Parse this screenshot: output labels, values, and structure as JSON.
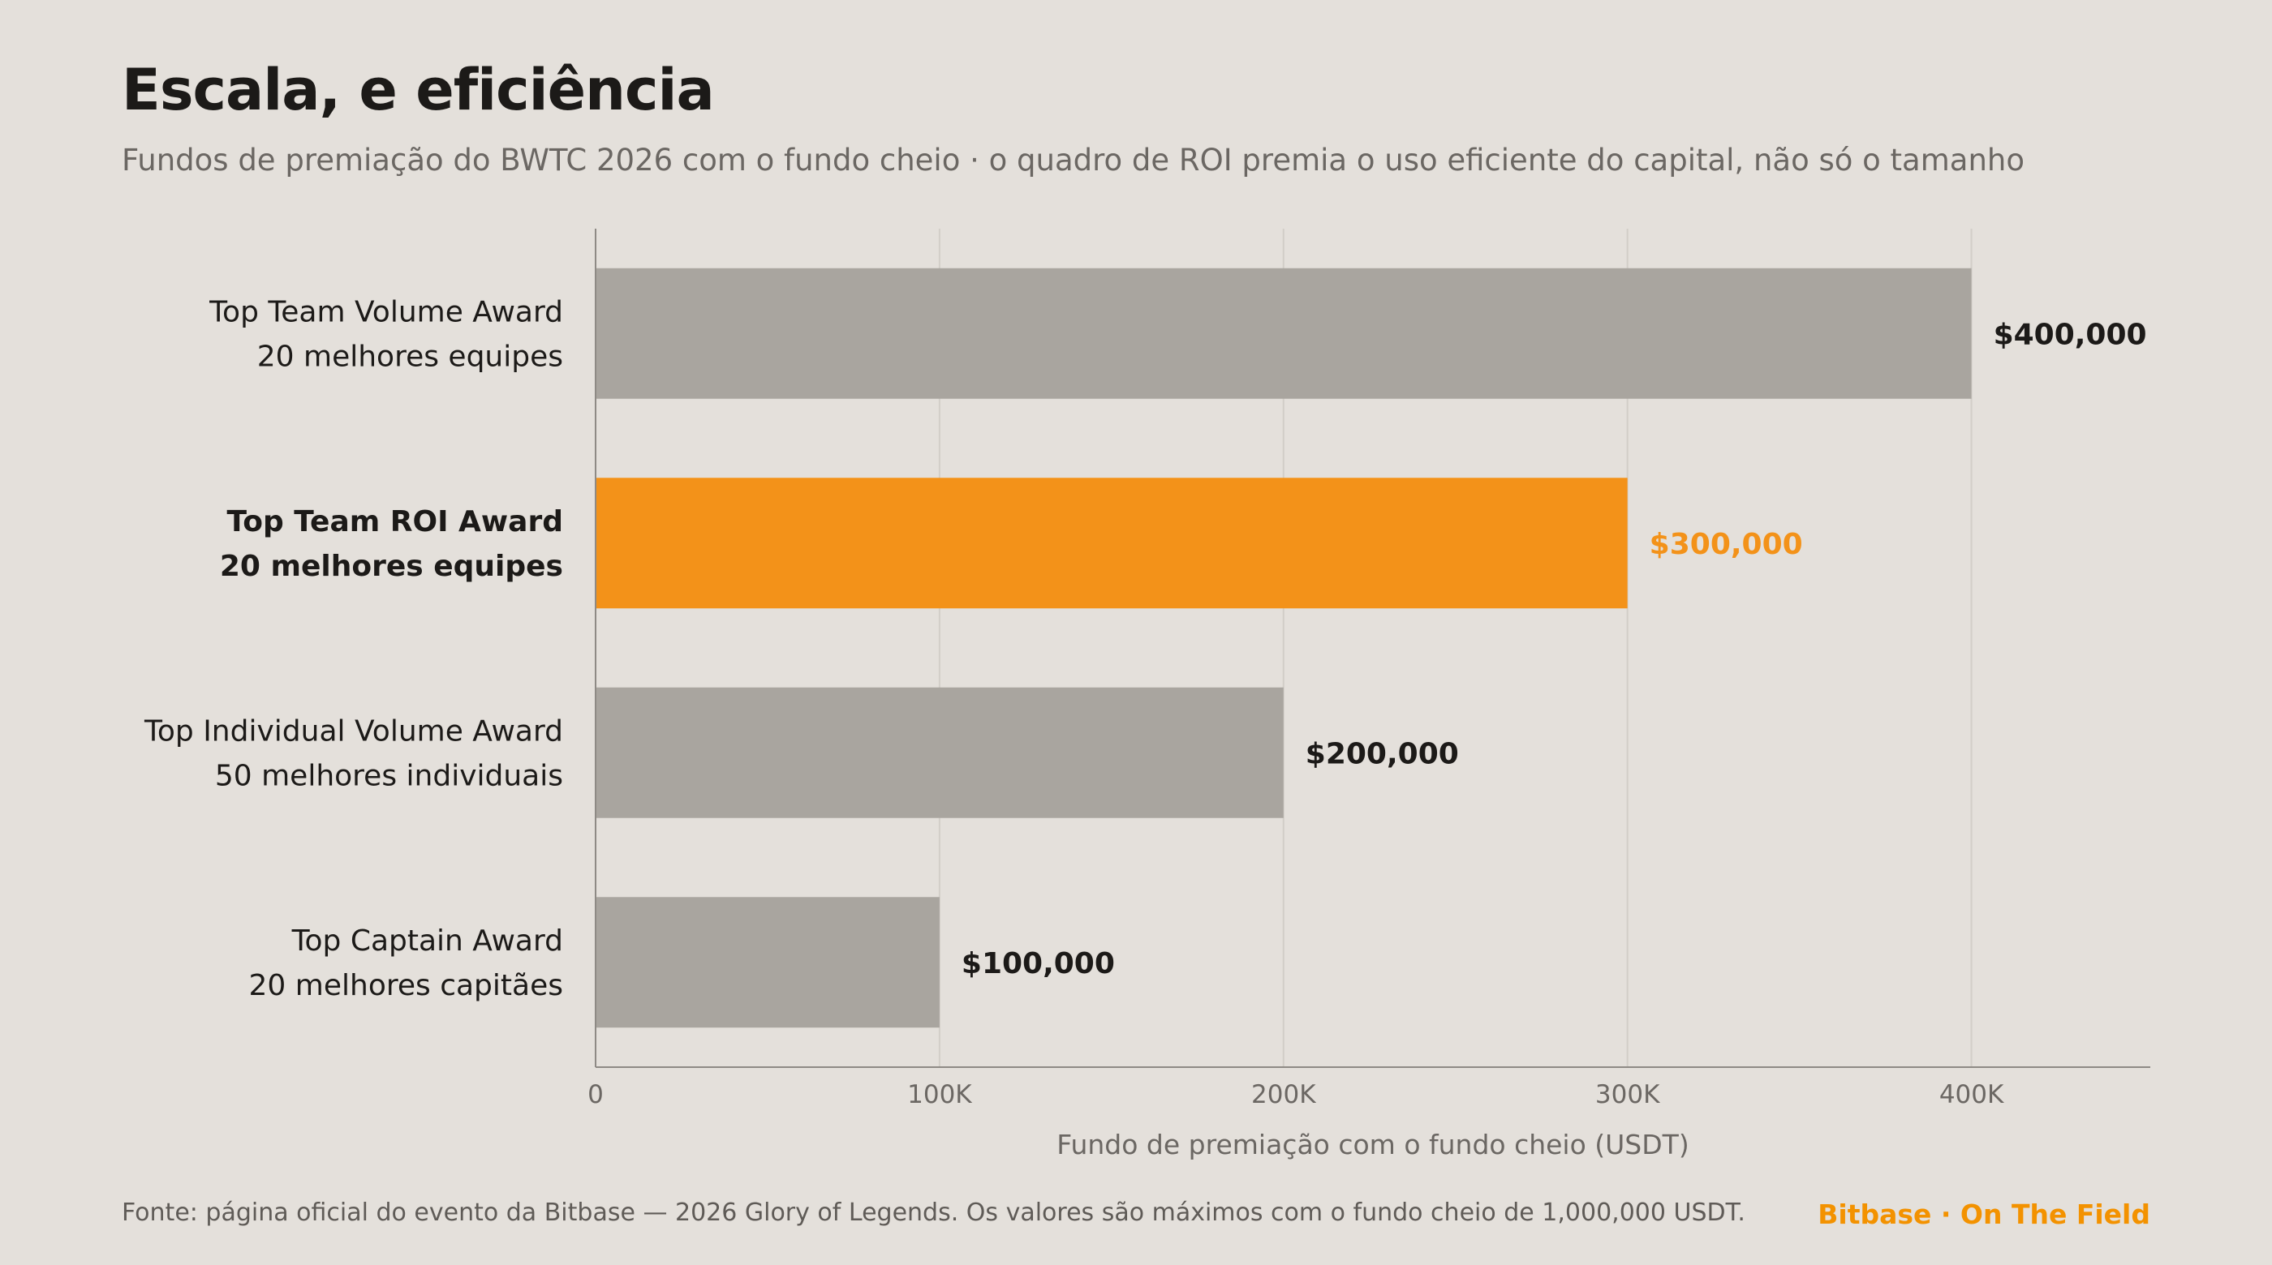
{
  "header": {
    "title": "Escala, e eficiência",
    "subtitle": "Fundos de premiação do BWTC 2026 com o fundo cheio · o quadro de ROI premia o uso eficiente do capital, não só o tamanho"
  },
  "footer": {
    "source": "Fonte: página oficial do evento da Bitbase — 2026 Glory of Legends. Os valores são máximos com o fundo cheio de 1,000,000 USDT.",
    "brand": "Bitbase · On The Field"
  },
  "colors": {
    "background": "#e4e0db",
    "bar_default": "#a9a59f",
    "bar_highlight": "#f39219",
    "highlight_text": "#f39219",
    "text_dark": "#1c1a18",
    "text_muted": "#6b6763",
    "grid": "#d2cec8",
    "axis": "#8e8a85"
  },
  "chart_data": {
    "type": "bar",
    "orientation": "horizontal",
    "categories": [
      {
        "name": "Top Team Volume Award",
        "detail": "20 melhores equipes",
        "value": 400000,
        "value_label": "$400,000",
        "highlight": false
      },
      {
        "name": "Top Team ROI Award",
        "detail": "20 melhores equipes",
        "value": 300000,
        "value_label": "$300,000",
        "highlight": true
      },
      {
        "name": "Top Individual Volume Award",
        "detail": "50 melhores individuais",
        "value": 200000,
        "value_label": "$200,000",
        "highlight": false
      },
      {
        "name": "Top Captain Award",
        "detail": "20 melhores capitães",
        "value": 100000,
        "value_label": "$100,000",
        "highlight": false
      }
    ],
    "xlabel": "Fundo de premiação com o fundo cheio (USDT)",
    "xlim": [
      0,
      452000
    ],
    "xticks": [
      {
        "value": 0,
        "label": "0"
      },
      {
        "value": 100000,
        "label": "100K"
      },
      {
        "value": 200000,
        "label": "200K"
      },
      {
        "value": 300000,
        "label": "300K"
      },
      {
        "value": 400000,
        "label": "400K"
      }
    ],
    "grid": "vertical"
  }
}
